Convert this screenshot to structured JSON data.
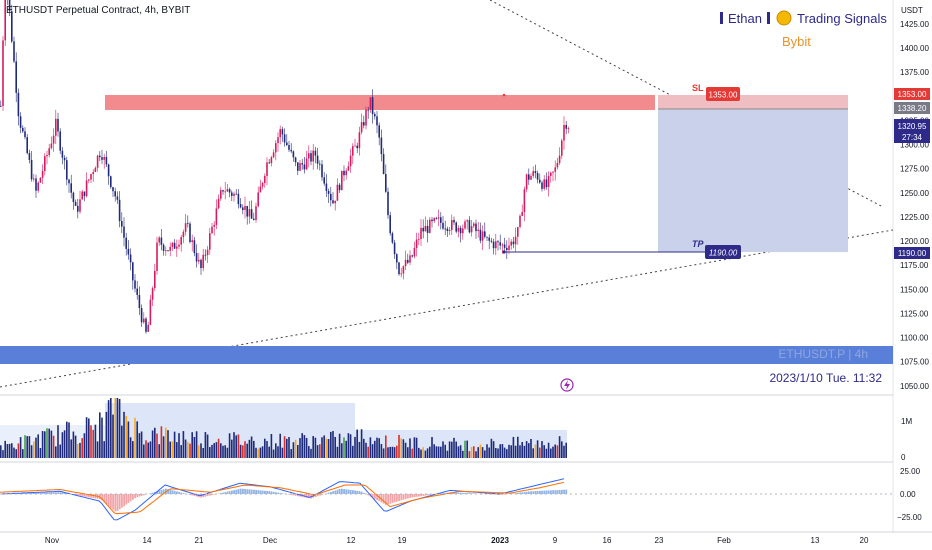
{
  "header": {
    "title": "ETHUSDT Perpetual Contract, 4h, BYBIT",
    "branding_name": "Ethan",
    "branding_sub": "Trading Signals",
    "exchange": "Bybit"
  },
  "axis": {
    "currency": "USDT",
    "price_ticks": [
      "1425.00",
      "1400.00",
      "1375.00",
      "1350.00",
      "1325.00",
      "1300.00",
      "1275.00",
      "1250.00",
      "1225.00",
      "1200.00",
      "1175.00",
      "1150.00",
      "1125.00",
      "1100.00",
      "1075.00",
      "1050.00"
    ],
    "volume_ticks": [
      "1M",
      "0"
    ],
    "osc_ticks": [
      "25.00",
      "0.00",
      "−25.00"
    ],
    "time_ticks": [
      "Nov",
      "14",
      "21",
      "Dec",
      "12",
      "19",
      "2023",
      "9",
      "16",
      "23",
      "Feb",
      "13",
      "20"
    ]
  },
  "labels": {
    "sl_text": "SL",
    "sl_price": "1353.00",
    "tp_text": "TP",
    "tp_price": "1190.00",
    "right_sl": "1353.00",
    "right_mid": "1338.20",
    "right_last": "1320.95",
    "right_timer": "27:34",
    "right_tp": "1190.00",
    "watermark_symbol": "ETHUSDT.P | 4h",
    "watermark_date": "2023/1/10 Tue. 11:32"
  },
  "colors": {
    "bull": "#d81b60",
    "bear": "#1f2a7a",
    "resistance": "#f28b8e",
    "support": "#5a7fd8",
    "sl_label": "#e53935",
    "tp_label": "#2d2a8a",
    "short_zone": "#c9d2ea",
    "risk_zone": "#eebec2"
  },
  "chart_data": {
    "type": "candlestick",
    "symbol": "ETHUSDT Perpetual Contract",
    "timeframe": "4h",
    "y_range": [
      1050,
      1435
    ],
    "stop_loss": 1353.0,
    "take_profit": 1190.0,
    "last_price": 1320.95,
    "resistance_zone": [
      1338,
      1353
    ],
    "support_zone": [
      1075,
      1093
    ],
    "path": [
      [
        0,
        1340
      ],
      [
        4,
        1470
      ],
      [
        8,
        1445
      ],
      [
        18,
        1330
      ],
      [
        35,
        1250
      ],
      [
        55,
        1320
      ],
      [
        75,
        1230
      ],
      [
        100,
        1295
      ],
      [
        115,
        1245
      ],
      [
        133,
        1155
      ],
      [
        146,
        1100
      ],
      [
        157,
        1200
      ],
      [
        170,
        1190
      ],
      [
        186,
        1215
      ],
      [
        200,
        1170
      ],
      [
        222,
        1255
      ],
      [
        238,
        1245
      ],
      [
        252,
        1220
      ],
      [
        265,
        1278
      ],
      [
        280,
        1315
      ],
      [
        296,
        1275
      ],
      [
        315,
        1290
      ],
      [
        332,
        1240
      ],
      [
        346,
        1280
      ],
      [
        356,
        1300
      ],
      [
        369,
        1345
      ],
      [
        378,
        1310
      ],
      [
        388,
        1220
      ],
      [
        398,
        1170
      ],
      [
        410,
        1180
      ],
      [
        420,
        1210
      ],
      [
        437,
        1220
      ],
      [
        455,
        1215
      ],
      [
        470,
        1215
      ],
      [
        486,
        1200
      ],
      [
        500,
        1195
      ],
      [
        510,
        1197
      ],
      [
        518,
        1210
      ],
      [
        525,
        1265
      ],
      [
        535,
        1270
      ],
      [
        545,
        1255
      ],
      [
        555,
        1275
      ],
      [
        560,
        1300
      ],
      [
        564,
        1325
      ],
      [
        568,
        1320
      ]
    ],
    "volume_path": [
      [
        0,
        0.1
      ],
      [
        105,
        0.3
      ],
      [
        110,
        0.55
      ],
      [
        117,
        0.45
      ],
      [
        140,
        0.22
      ],
      [
        200,
        0.18
      ],
      [
        260,
        0.15
      ],
      [
        350,
        0.17
      ],
      [
        365,
        0.2
      ],
      [
        380,
        0.15
      ],
      [
        470,
        0.12
      ],
      [
        568,
        0.14
      ]
    ],
    "oscillator": {
      "line1": [
        [
          0,
          0
        ],
        [
          60,
          3
        ],
        [
          100,
          -8
        ],
        [
          115,
          -30
        ],
        [
          135,
          -18
        ],
        [
          165,
          10
        ],
        [
          200,
          -2
        ],
        [
          240,
          12
        ],
        [
          270,
          8
        ],
        [
          310,
          -4
        ],
        [
          340,
          14
        ],
        [
          360,
          12
        ],
        [
          385,
          -20
        ],
        [
          410,
          -8
        ],
        [
          450,
          4
        ],
        [
          500,
          0
        ],
        [
          530,
          8
        ],
        [
          568,
          18
        ]
      ],
      "line2": [
        [
          0,
          2
        ],
        [
          60,
          5
        ],
        [
          100,
          -3
        ],
        [
          115,
          -22
        ],
        [
          140,
          -20
        ],
        [
          170,
          6
        ],
        [
          210,
          2
        ],
        [
          245,
          10
        ],
        [
          280,
          7
        ],
        [
          315,
          -1
        ],
        [
          345,
          10
        ],
        [
          365,
          10
        ],
        [
          390,
          -14
        ],
        [
          420,
          -5
        ],
        [
          460,
          3
        ],
        [
          510,
          1
        ],
        [
          540,
          7
        ],
        [
          568,
          14
        ]
      ],
      "hist": [
        [
          0,
          0
        ],
        [
          60,
          2
        ],
        [
          100,
          -6
        ],
        [
          115,
          -20
        ],
        [
          135,
          -4
        ],
        [
          165,
          6
        ],
        [
          200,
          -4
        ],
        [
          240,
          6
        ],
        [
          270,
          3
        ],
        [
          310,
          -5
        ],
        [
          340,
          6
        ],
        [
          360,
          3
        ],
        [
          385,
          -12
        ],
        [
          410,
          -4
        ],
        [
          450,
          2
        ],
        [
          500,
          -1
        ],
        [
          530,
          3
        ],
        [
          568,
          5
        ]
      ]
    }
  }
}
